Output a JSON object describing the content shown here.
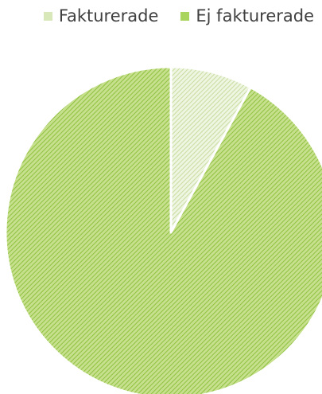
{
  "chart_data": {
    "type": "pie",
    "title": "",
    "categories": [
      "Fakturerade",
      "Ej fakturerade"
    ],
    "values": [
      8,
      92
    ],
    "colors": [
      "#d9e8b8",
      "#a9d45e"
    ],
    "legend_position": "top-right",
    "start_angle_deg": 0,
    "direction": "clockwise"
  }
}
